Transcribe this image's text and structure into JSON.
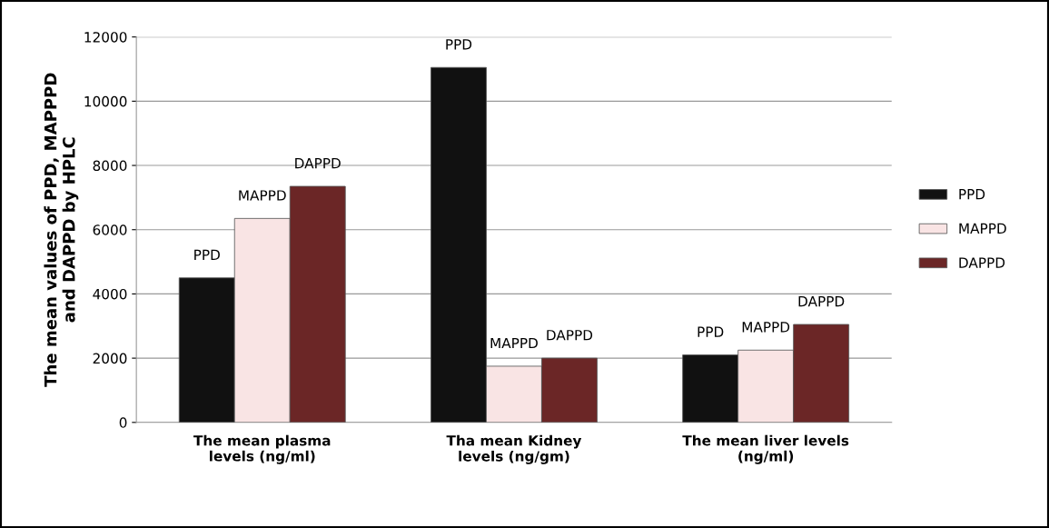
{
  "chart_data": {
    "type": "bar",
    "ylabel": "The mean values of PPD, MAPPPD\nand DAPPD by HPLC",
    "categories": [
      "The mean plasma\nlevels (ng/ml)",
      "Tha mean Kidney\nlevels (ng/gm)",
      "The mean liver levels\n(ng/ml)"
    ],
    "series": [
      {
        "name": "PPD",
        "color": "#111111",
        "values": [
          4500,
          11050,
          2100
        ],
        "value_labels": [
          "PPD",
          "PPD",
          "PPD"
        ]
      },
      {
        "name": "MAPPD",
        "color": "#f9e4e4",
        "values": [
          6350,
          1750,
          2250
        ],
        "value_labels": [
          "MAPPD",
          "MAPPD",
          "MAPPD"
        ]
      },
      {
        "name": "DAPPD",
        "color": "#6b2626",
        "values": [
          7350,
          2000,
          3050
        ],
        "value_labels": [
          "DAPPD",
          "DAPPD",
          "DAPPD"
        ]
      }
    ],
    "ylim": [
      0,
      12000
    ],
    "yticks": [
      0,
      2000,
      4000,
      6000,
      8000,
      10000,
      12000
    ],
    "grid": "y",
    "legend": "right"
  }
}
